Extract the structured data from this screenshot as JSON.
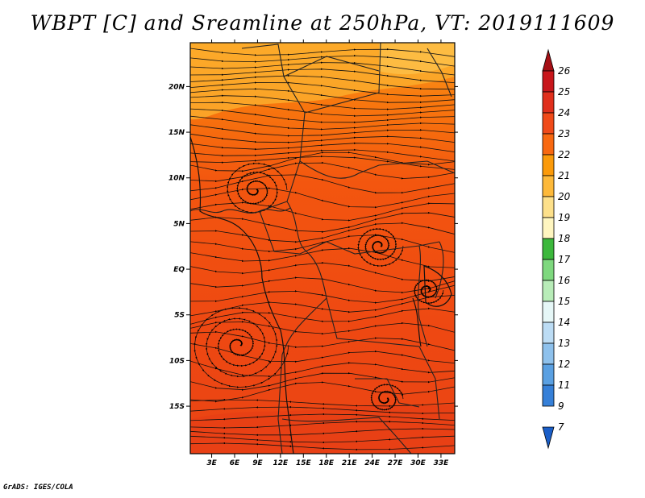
{
  "title": "WBPT [C] and Sreamline at 250hPa, VT: 2019111609",
  "credit": "GrADS: IGES/COLA",
  "map": {
    "lon_labels": [
      "3E",
      "6E",
      "9E",
      "12E",
      "15E",
      "18E",
      "21E",
      "24E",
      "27E",
      "30E",
      "33E"
    ],
    "lat_labels": [
      "20N",
      "15N",
      "10N",
      "5N",
      "EQ",
      "5S",
      "10S",
      "15S"
    ],
    "lon_values": [
      3,
      6,
      9,
      12,
      15,
      18,
      21,
      24,
      27,
      30,
      33
    ],
    "lat_values": [
      20,
      15,
      10,
      5,
      0,
      -5,
      -10,
      -15
    ],
    "lon_range": [
      0.2,
      34.8
    ],
    "lat_range": [
      -20.2,
      24.8
    ]
  },
  "colorbar": {
    "labels": [
      "26",
      "25",
      "24",
      "23",
      "22",
      "21",
      "20",
      "19",
      "18",
      "17",
      "16",
      "15",
      "14",
      "13",
      "12",
      "11",
      "9",
      "7"
    ],
    "colors": [
      "#a50f15",
      "#c8161b",
      "#e02f1c",
      "#f04a19",
      "#f86810",
      "#fb9a0a",
      "#fdb93a",
      "#fde08a",
      "#fff6c0",
      "#3cb83c",
      "#7ed87e",
      "#b8ecb8",
      "#e6f7f7",
      "#bcdcf4",
      "#8ec1ec",
      "#5aa0e2",
      "#3680d8",
      "#1a5ec8"
    ]
  }
}
